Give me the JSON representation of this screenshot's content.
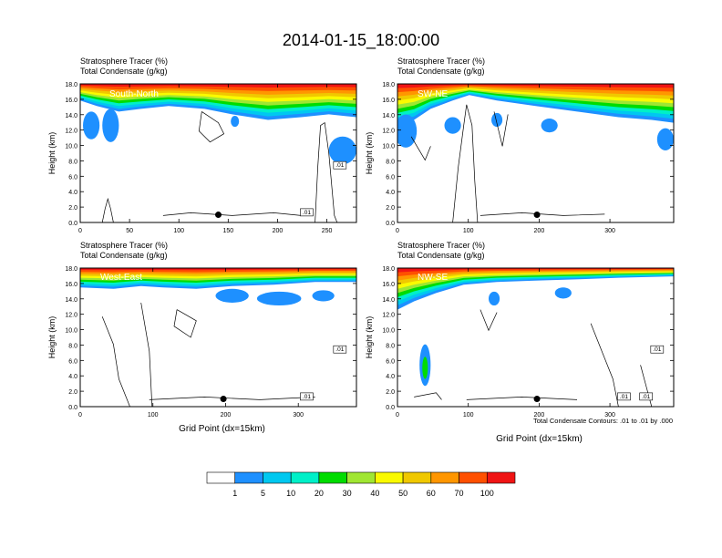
{
  "figure": {
    "title": "2014-01-15_18:00:00",
    "footnote": "Total Condensate Contours: .01 to .01 by .000"
  },
  "colors": {
    "levels": [
      "#ffffff",
      "#1e90ff",
      "#00c8f0",
      "#00f0c8",
      "#00dc00",
      "#a0e632",
      "#fafa00",
      "#f0c800",
      "#ff9600",
      "#ff5000",
      "#f01414"
    ],
    "contour": "#000000",
    "frame": "#000000"
  },
  "colorbar": {
    "labels": [
      "1",
      "5",
      "10",
      "20",
      "30",
      "40",
      "50",
      "60",
      "70",
      "100"
    ]
  },
  "chart_data": [
    {
      "type": "heatmap",
      "panel": "South-North",
      "label1": "Stratosphere Tracer   (%)",
      "label2": "Total Condensate   (g/kg)",
      "xlabel": "",
      "ylabel": "Height (km)",
      "xlim": [
        0,
        280
      ],
      "ylim": [
        0,
        18
      ],
      "xticks": [
        "0",
        "50",
        "100",
        "150",
        "200",
        "250"
      ],
      "yticks": [
        "0.0",
        "2.0",
        "4.0",
        "6.0",
        "8.0",
        "10.0",
        "12.0",
        "14.0",
        "16.0",
        "18.0"
      ],
      "marker_x": 140,
      "contour_labels": [
        ".01",
        ".01"
      ]
    },
    {
      "type": "heatmap",
      "panel": "SW-NE",
      "label1": "Stratosphere Tracer   (%)",
      "label2": "Total Condensate   (g/kg)",
      "xlabel": "",
      "ylabel": "Height (km)",
      "xlim": [
        0,
        390
      ],
      "ylim": [
        0,
        18
      ],
      "xticks": [
        "0",
        "100",
        "200",
        "300"
      ],
      "yticks": [
        "0.0",
        "2.0",
        "4.0",
        "6.0",
        "8.0",
        "10.0",
        "12.0",
        "14.0",
        "16.0",
        "18.0"
      ],
      "marker_x": 197,
      "contour_labels": []
    },
    {
      "type": "heatmap",
      "panel": "West-East",
      "label1": "Stratosphere Tracer   (%)",
      "label2": "Total Condensate   (g/kg)",
      "xlabel": "Grid Point (dx=15km)",
      "ylabel": "Height (km)",
      "xlim": [
        0,
        380
      ],
      "ylim": [
        0,
        18
      ],
      "xticks": [
        "0",
        "100",
        "200",
        "300"
      ],
      "yticks": [
        "0.0",
        "2.0",
        "4.0",
        "6.0",
        "8.0",
        "10.0",
        "12.0",
        "14.0",
        "16.0",
        "18.0"
      ],
      "marker_x": 197,
      "contour_labels": [
        ".01",
        ".01"
      ]
    },
    {
      "type": "heatmap",
      "panel": "NW-SE",
      "label1": "Stratosphere Tracer   (%)",
      "label2": "Total Condensate   (g/kg)",
      "xlabel": "Grid Point (dx=15km)",
      "ylabel": "Height (km)",
      "xlim": [
        0,
        390
      ],
      "ylim": [
        0,
        18
      ],
      "xticks": [
        "0",
        "100",
        "200",
        "300"
      ],
      "yticks": [
        "0.0",
        "2.0",
        "4.0",
        "6.0",
        "8.0",
        "10.0",
        "12.0",
        "14.0",
        "16.0",
        "18.0"
      ],
      "marker_x": 197,
      "contour_labels": [
        ".01",
        ".01",
        ".01"
      ]
    }
  ]
}
